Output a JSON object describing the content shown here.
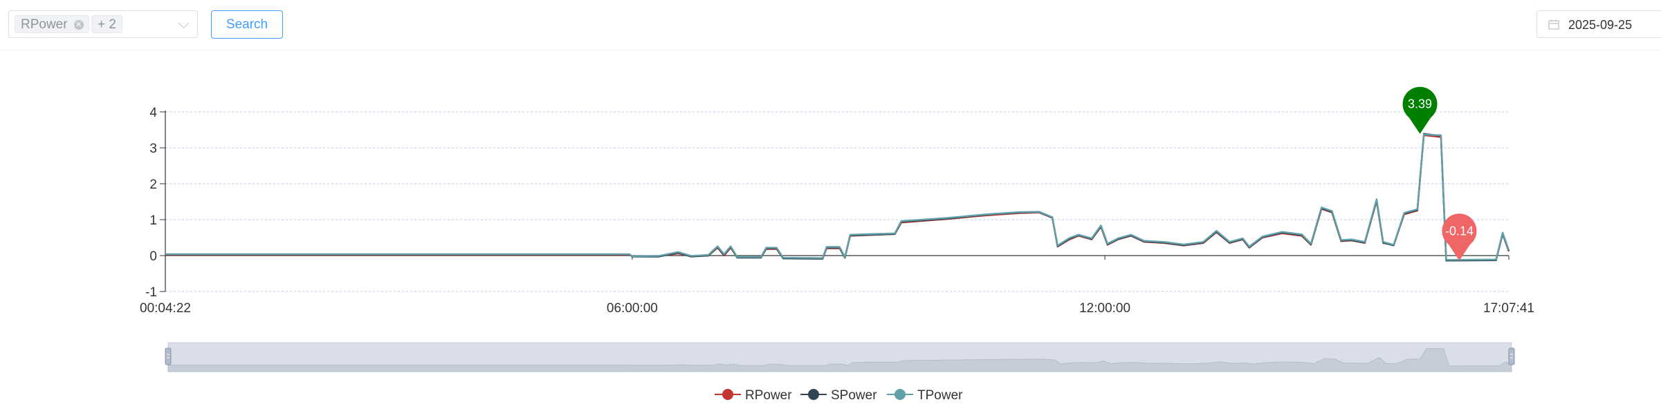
{
  "toolbar": {
    "select": {
      "tag_first": "RPower",
      "tag_more": "+ 2"
    },
    "search_label": "Search",
    "date_value": "2025-09-25"
  },
  "colors": {
    "rpower": "#c23531",
    "spower": "#2f4554",
    "tpower": "#61a0a8",
    "max_pin": "#008000",
    "min_pin": "#ee6666",
    "grid": "#c9d7f0"
  },
  "chart_data": {
    "type": "line",
    "title": "",
    "xlabel": "",
    "ylabel": "",
    "x_range": [
      "00:04:22",
      "17:07:41"
    ],
    "x_ticks": [
      "00:04:22",
      "06:00:00",
      "12:00:00",
      "17:07:41"
    ],
    "y_ticks": [
      4,
      3,
      2,
      1,
      0,
      -1
    ],
    "ylim": [
      -1,
      4
    ],
    "grid": "horizontal dotted",
    "legend_position": "bottom",
    "data_zoom": "slider below plot, full range selected",
    "markers": [
      {
        "type": "max",
        "label": "3.39",
        "time": "16:00:00",
        "value": 3.39
      },
      {
        "type": "min",
        "label": "-0.14",
        "time": "16:30:00",
        "value": -0.14
      }
    ],
    "series": [
      {
        "name": "RPower",
        "points": [
          [
            "00:04:22",
            0.02
          ],
          [
            "05:58:00",
            0.02
          ],
          [
            "06:00:00",
            -0.02
          ],
          [
            "06:20:00",
            -0.02
          ],
          [
            "06:35:00",
            0.06
          ],
          [
            "06:45:00",
            -0.02
          ],
          [
            "06:58:00",
            0.0
          ],
          [
            "07:05:00",
            0.22
          ],
          [
            "07:10:00",
            0.0
          ],
          [
            "07:15:00",
            0.22
          ],
          [
            "07:20:00",
            -0.05
          ],
          [
            "07:38:00",
            -0.05
          ],
          [
            "07:42:00",
            0.18
          ],
          [
            "07:50:00",
            0.18
          ],
          [
            "07:55:00",
            -0.07
          ],
          [
            "08:25:00",
            -0.08
          ],
          [
            "08:28:00",
            0.2
          ],
          [
            "08:38:00",
            0.2
          ],
          [
            "08:42:00",
            -0.05
          ],
          [
            "08:46:00",
            0.55
          ],
          [
            "09:20:00",
            0.6
          ],
          [
            "09:25:00",
            0.92
          ],
          [
            "10:00:00",
            1.02
          ],
          [
            "10:30:00",
            1.12
          ],
          [
            "10:55:00",
            1.18
          ],
          [
            "11:10:00",
            1.2
          ],
          [
            "11:20:00",
            1.05
          ],
          [
            "11:24:00",
            0.25
          ],
          [
            "11:33:00",
            0.45
          ],
          [
            "11:40:00",
            0.55
          ],
          [
            "11:50:00",
            0.45
          ],
          [
            "11:57:00",
            0.8
          ],
          [
            "12:02:00",
            0.3
          ],
          [
            "12:10:00",
            0.45
          ],
          [
            "12:20:00",
            0.55
          ],
          [
            "12:30:00",
            0.38
          ],
          [
            "12:45:00",
            0.35
          ],
          [
            "13:00:00",
            0.28
          ],
          [
            "13:15:00",
            0.35
          ],
          [
            "13:25:00",
            0.65
          ],
          [
            "13:35:00",
            0.35
          ],
          [
            "13:45:00",
            0.45
          ],
          [
            "13:50:00",
            0.22
          ],
          [
            "14:00:00",
            0.5
          ],
          [
            "14:15:00",
            0.62
          ],
          [
            "14:30:00",
            0.55
          ],
          [
            "14:37:00",
            0.3
          ],
          [
            "14:45:00",
            1.3
          ],
          [
            "14:53:00",
            1.2
          ],
          [
            "15:00:00",
            0.4
          ],
          [
            "15:08:00",
            0.42
          ],
          [
            "15:18:00",
            0.35
          ],
          [
            "15:27:00",
            1.52
          ],
          [
            "15:32:00",
            0.35
          ],
          [
            "15:40:00",
            0.3
          ],
          [
            "15:48:00",
            1.15
          ],
          [
            "15:58:00",
            1.25
          ],
          [
            "16:03:00",
            3.35
          ],
          [
            "16:16:00",
            3.3
          ],
          [
            "16:20:00",
            -0.12
          ],
          [
            "16:58:00",
            -0.12
          ],
          [
            "17:03:00",
            0.6
          ],
          [
            "17:07:41",
            0.12
          ]
        ]
      },
      {
        "name": "SPower",
        "points": [
          [
            "00:04:22",
            0.03
          ],
          [
            "05:58:00",
            0.03
          ],
          [
            "06:00:00",
            -0.03
          ],
          [
            "06:20:00",
            -0.03
          ],
          [
            "06:35:00",
            0.08
          ],
          [
            "06:45:00",
            -0.03
          ],
          [
            "06:58:00",
            0.0
          ],
          [
            "07:05:00",
            0.24
          ],
          [
            "07:10:00",
            0.02
          ],
          [
            "07:15:00",
            0.24
          ],
          [
            "07:20:00",
            -0.06
          ],
          [
            "07:38:00",
            -0.06
          ],
          [
            "07:42:00",
            0.2
          ],
          [
            "07:50:00",
            0.2
          ],
          [
            "07:55:00",
            -0.08
          ],
          [
            "08:25:00",
            -0.09
          ],
          [
            "08:28:00",
            0.22
          ],
          [
            "08:38:00",
            0.22
          ],
          [
            "08:42:00",
            -0.06
          ],
          [
            "08:46:00",
            0.56
          ],
          [
            "09:20:00",
            0.6
          ],
          [
            "09:25:00",
            0.94
          ],
          [
            "10:00:00",
            1.03
          ],
          [
            "10:30:00",
            1.14
          ],
          [
            "10:55:00",
            1.2
          ],
          [
            "11:10:00",
            1.21
          ],
          [
            "11:20:00",
            1.06
          ],
          [
            "11:24:00",
            0.26
          ],
          [
            "11:33:00",
            0.47
          ],
          [
            "11:40:00",
            0.57
          ],
          [
            "11:50:00",
            0.46
          ],
          [
            "11:57:00",
            0.82
          ],
          [
            "12:02:00",
            0.31
          ],
          [
            "12:10:00",
            0.46
          ],
          [
            "12:20:00",
            0.56
          ],
          [
            "12:30:00",
            0.39
          ],
          [
            "12:45:00",
            0.36
          ],
          [
            "13:00:00",
            0.29
          ],
          [
            "13:15:00",
            0.36
          ],
          [
            "13:25:00",
            0.67
          ],
          [
            "13:35:00",
            0.36
          ],
          [
            "13:45:00",
            0.46
          ],
          [
            "13:50:00",
            0.23
          ],
          [
            "14:00:00",
            0.51
          ],
          [
            "14:15:00",
            0.64
          ],
          [
            "14:30:00",
            0.57
          ],
          [
            "14:37:00",
            0.31
          ],
          [
            "14:45:00",
            1.32
          ],
          [
            "14:53:00",
            1.22
          ],
          [
            "15:00:00",
            0.41
          ],
          [
            "15:08:00",
            0.43
          ],
          [
            "15:18:00",
            0.36
          ],
          [
            "15:27:00",
            1.55
          ],
          [
            "15:32:00",
            0.36
          ],
          [
            "15:40:00",
            0.28
          ],
          [
            "15:48:00",
            1.17
          ],
          [
            "15:58:00",
            1.27
          ],
          [
            "16:03:00",
            3.39
          ],
          [
            "16:16:00",
            3.33
          ],
          [
            "16:20:00",
            -0.14
          ],
          [
            "16:58:00",
            -0.13
          ],
          [
            "17:03:00",
            0.62
          ],
          [
            "17:07:41",
            0.13
          ]
        ]
      },
      {
        "name": "TPower",
        "points": [
          [
            "00:04:22",
            0.04
          ],
          [
            "05:58:00",
            0.04
          ],
          [
            "06:00:00",
            -0.02
          ],
          [
            "06:20:00",
            -0.01
          ],
          [
            "06:35:00",
            0.1
          ],
          [
            "06:45:00",
            -0.01
          ],
          [
            "06:58:00",
            0.02
          ],
          [
            "07:05:00",
            0.26
          ],
          [
            "07:10:00",
            0.04
          ],
          [
            "07:15:00",
            0.26
          ],
          [
            "07:20:00",
            -0.04
          ],
          [
            "07:38:00",
            -0.04
          ],
          [
            "07:42:00",
            0.22
          ],
          [
            "07:50:00",
            0.22
          ],
          [
            "07:55:00",
            -0.06
          ],
          [
            "08:25:00",
            -0.07
          ],
          [
            "08:28:00",
            0.24
          ],
          [
            "08:38:00",
            0.24
          ],
          [
            "08:42:00",
            -0.04
          ],
          [
            "08:46:00",
            0.58
          ],
          [
            "09:20:00",
            0.62
          ],
          [
            "09:25:00",
            0.96
          ],
          [
            "10:00:00",
            1.05
          ],
          [
            "10:30:00",
            1.15
          ],
          [
            "10:55:00",
            1.21
          ],
          [
            "11:10:00",
            1.22
          ],
          [
            "11:20:00",
            1.07
          ],
          [
            "11:24:00",
            0.28
          ],
          [
            "11:33:00",
            0.49
          ],
          [
            "11:40:00",
            0.58
          ],
          [
            "11:50:00",
            0.48
          ],
          [
            "11:57:00",
            0.84
          ],
          [
            "12:02:00",
            0.33
          ],
          [
            "12:10:00",
            0.48
          ],
          [
            "12:20:00",
            0.58
          ],
          [
            "12:30:00",
            0.41
          ],
          [
            "12:45:00",
            0.38
          ],
          [
            "13:00:00",
            0.31
          ],
          [
            "13:15:00",
            0.38
          ],
          [
            "13:25:00",
            0.69
          ],
          [
            "13:35:00",
            0.38
          ],
          [
            "13:45:00",
            0.48
          ],
          [
            "13:50:00",
            0.25
          ],
          [
            "14:00:00",
            0.53
          ],
          [
            "14:15:00",
            0.66
          ],
          [
            "14:30:00",
            0.59
          ],
          [
            "14:37:00",
            0.33
          ],
          [
            "14:45:00",
            1.34
          ],
          [
            "14:53:00",
            1.24
          ],
          [
            "15:00:00",
            0.43
          ],
          [
            "15:08:00",
            0.45
          ],
          [
            "15:18:00",
            0.38
          ],
          [
            "15:27:00",
            1.57
          ],
          [
            "15:32:00",
            0.38
          ],
          [
            "15:40:00",
            0.3
          ],
          [
            "15:48:00",
            1.19
          ],
          [
            "15:58:00",
            1.29
          ],
          [
            "16:03:00",
            3.37
          ],
          [
            "16:16:00",
            3.35
          ],
          [
            "16:20:00",
            -0.12
          ],
          [
            "16:58:00",
            -0.11
          ],
          [
            "17:03:00",
            0.64
          ],
          [
            "17:07:41",
            0.15
          ]
        ]
      }
    ]
  }
}
